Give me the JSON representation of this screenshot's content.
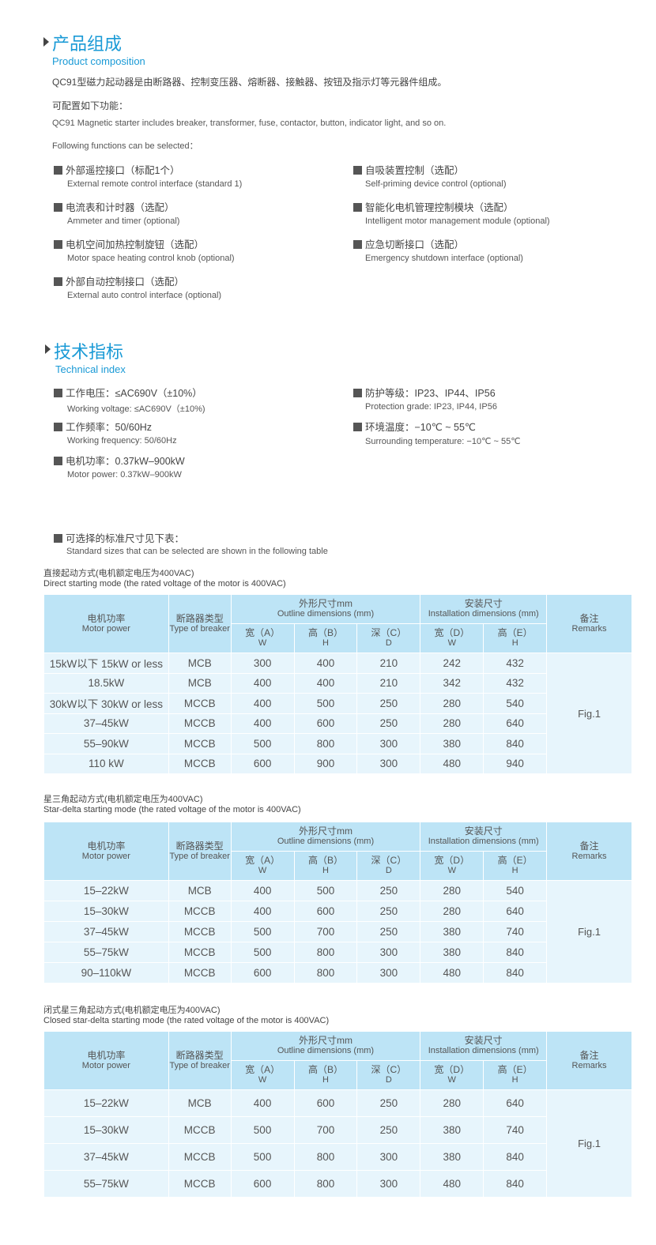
{
  "composition": {
    "title_cn": "产品组成",
    "title_en": "Product composition",
    "intro_cn": "QC91型磁力起动器是由断路器、控制变压器、熔断器、接触器、按钮及指示灯等元器件组成。",
    "config_cn": "可配置如下功能：",
    "intro_en": "QC91 Magnetic starter includes breaker, transformer, fuse, contactor, button, indicator light, and so on.",
    "config_en": "Following functions can be selected：",
    "left_items": [
      {
        "cn": "外部遥控接口（标配1个）",
        "en": "External remote control interface (standard 1)"
      },
      {
        "cn": "电流表和计时器（选配）",
        "en": "Ammeter and timer (optional)"
      },
      {
        "cn": "电机空间加热控制旋钮（选配）",
        "en": "Motor space heating control knob (optional)"
      },
      {
        "cn": "外部自动控制接口（选配）",
        "en": "External auto control interface (optional)"
      }
    ],
    "right_items": [
      {
        "cn": "自吸装置控制（选配）",
        "en": "Self-priming device control (optional)"
      },
      {
        "cn": "智能化电机管理控制模块（选配）",
        "en": "Intelligent motor management module (optional)"
      },
      {
        "cn": "应急切断接口（选配）",
        "en": "Emergency shutdown interface (optional)"
      }
    ]
  },
  "technical": {
    "title_cn": "技术指标",
    "title_en": "Technical index",
    "left_items": [
      {
        "cn": "工作电压：≤AC690V（±10%）",
        "en": "Working voltage: ≤AC690V（±10%)"
      },
      {
        "cn": "工作频率：50/60Hz",
        "en": "Working frequency: 50/60Hz"
      },
      {
        "cn": "电机功率：0.37kW–900kW",
        "en": "Motor power: 0.37kW–900kW"
      }
    ],
    "right_items": [
      {
        "cn": "防护等级：IP23、IP44、IP56",
        "en": "Protection grade: IP23, IP44, IP56"
      },
      {
        "cn": "环境温度：−10℃ ~ 55℃",
        "en": "Surrounding temperature: −10℃ ~ 55℃"
      }
    ],
    "sizes_cn": "可选择的标准尺寸见下表：",
    "sizes_en": "Standard sizes that can be selected are shown in the following table"
  },
  "table_header": {
    "power_cn": "电机功率",
    "power_en": "Motor power",
    "breaker_cn": "断路器类型",
    "breaker_en": "Type of breaker",
    "outline_cn": "外形尺寸mm",
    "outline_en": "Outline dimensions (mm)",
    "install_cn": "安装尺寸",
    "install_en": "Installation dimensions (mm)",
    "remarks_cn": "备注",
    "remarks_en": "Remarks",
    "sub": [
      {
        "cn": "宽（A）",
        "en": "W"
      },
      {
        "cn": "高（B）",
        "en": "H"
      },
      {
        "cn": "深（C）",
        "en": "D"
      },
      {
        "cn": "宽（D）",
        "en": "W"
      },
      {
        "cn": "高（E）",
        "en": "H"
      }
    ]
  },
  "tables": [
    {
      "caption_cn": "直接起动方式(电机额定电压为400VAC)",
      "caption_en": "Direct starting mode (the rated voltage of the motor is 400VAC)",
      "remark": "Fig.1",
      "rows": [
        [
          "15kW以下 15kW or less",
          "MCB",
          "300",
          "400",
          "210",
          "242",
          "432"
        ],
        [
          "18.5kW",
          "MCB",
          "400",
          "400",
          "210",
          "342",
          "432"
        ],
        [
          "30kW以下 30kW or less",
          "MCCB",
          "400",
          "500",
          "250",
          "280",
          "540"
        ],
        [
          "37–45kW",
          "MCCB",
          "400",
          "600",
          "250",
          "280",
          "640"
        ],
        [
          "55–90kW",
          "MCCB",
          "500",
          "800",
          "300",
          "380",
          "840"
        ],
        [
          "110 kW",
          "MCCB",
          "600",
          "900",
          "300",
          "480",
          "940"
        ]
      ]
    },
    {
      "caption_cn": "星三角起动方式(电机额定电压为400VAC)",
      "caption_en": "Star-delta starting mode (the rated voltage of the motor is 400VAC)",
      "remark": "Fig.1",
      "rows": [
        [
          "15–22kW",
          "MCB",
          "400",
          "500",
          "250",
          "280",
          "540"
        ],
        [
          "15–30kW",
          "MCCB",
          "400",
          "600",
          "250",
          "280",
          "640"
        ],
        [
          "37–45kW",
          "MCCB",
          "500",
          "700",
          "250",
          "380",
          "740"
        ],
        [
          "55–75kW",
          "MCCB",
          "500",
          "800",
          "300",
          "380",
          "840"
        ],
        [
          "90–110kW",
          "MCCB",
          "600",
          "800",
          "300",
          "480",
          "840"
        ]
      ]
    },
    {
      "caption_cn": "闭式星三角起动方式(电机额定电压为400VAC)",
      "caption_en": "Closed star-delta starting mode (the rated voltage of the motor is 400VAC)",
      "remark": "Fig.1",
      "rows": [
        [
          "15–22kW",
          "MCB",
          "400",
          "600",
          "250",
          "280",
          "640"
        ],
        [
          "15–30kW",
          "MCCB",
          "500",
          "700",
          "250",
          "380",
          "740"
        ],
        [
          "37–45kW",
          "MCCB",
          "500",
          "800",
          "300",
          "380",
          "840"
        ],
        [
          "55–75kW",
          "MCCB",
          "600",
          "800",
          "300",
          "480",
          "840"
        ]
      ]
    }
  ]
}
